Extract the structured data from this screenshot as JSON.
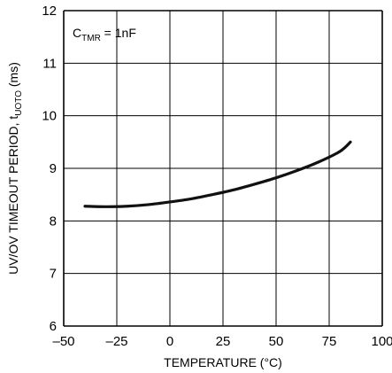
{
  "chart_data": {
    "type": "line",
    "title": "",
    "xlabel": "TEMPERATURE (°C)",
    "ylabel_main": "UV/OV TIMEOUT PERIOD, t",
    "ylabel_sub": "UOTO",
    "ylabel_unit": " (ms)",
    "xlim": [
      -50,
      100
    ],
    "ylim": [
      6,
      12
    ],
    "xticks": [
      "–50",
      "–25",
      "0",
      "25",
      "50",
      "75",
      "100"
    ],
    "xtick_values": [
      -50,
      -25,
      0,
      25,
      50,
      75,
      100
    ],
    "yticks": [
      "6",
      "7",
      "8",
      "9",
      "10",
      "11",
      "12"
    ],
    "ytick_values": [
      6,
      7,
      8,
      9,
      10,
      11,
      12
    ],
    "grid": true,
    "annotation": {
      "main": "C",
      "sub": "TMR",
      "rest": " = 1nF"
    },
    "series": [
      {
        "x": [
          -40,
          -30,
          -20,
          -10,
          0,
          10,
          20,
          30,
          40,
          50,
          60,
          70,
          80,
          85
        ],
        "values": [
          8.28,
          8.27,
          8.28,
          8.31,
          8.36,
          8.42,
          8.5,
          8.59,
          8.7,
          8.82,
          8.96,
          9.12,
          9.32,
          9.5
        ]
      }
    ],
    "colors": {
      "line": "#111111",
      "grid": "#000000",
      "background": "#ffffff"
    }
  }
}
